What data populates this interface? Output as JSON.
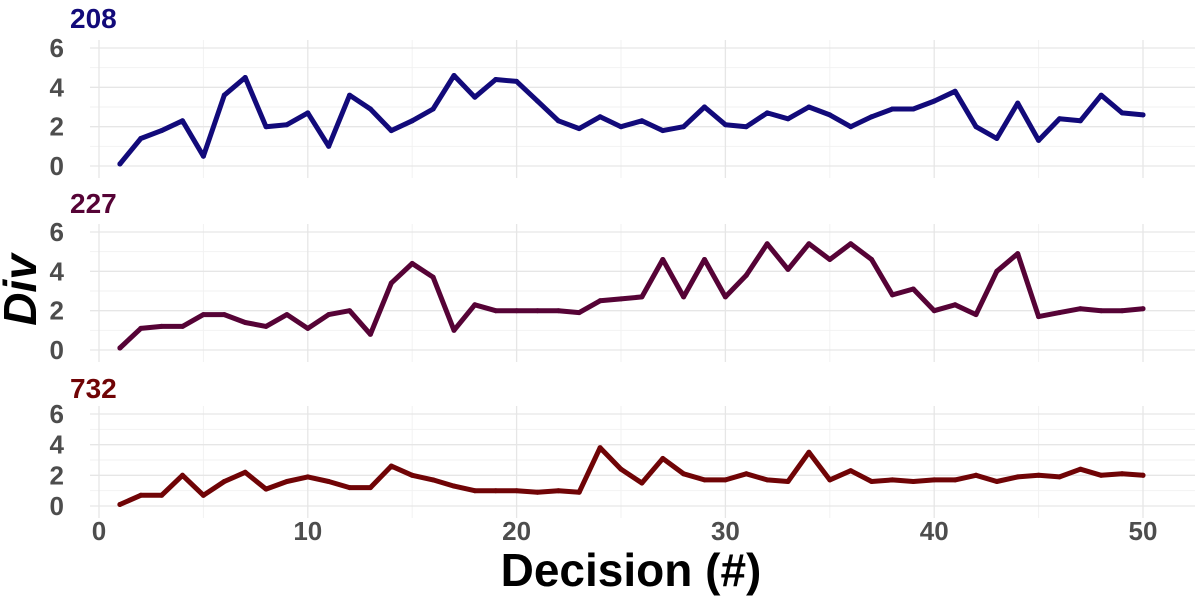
{
  "chart_data": {
    "type": "line",
    "xlabel": "Decision (#)",
    "ylabel": "Div",
    "xlim": [
      0,
      50
    ],
    "ylim": [
      0,
      6
    ],
    "xticks": [
      0,
      10,
      20,
      30,
      40,
      50
    ],
    "yticks": [
      0,
      2,
      4,
      6
    ],
    "grid": true,
    "legend": "none",
    "x": [
      1,
      2,
      3,
      4,
      5,
      6,
      7,
      8,
      9,
      10,
      11,
      12,
      13,
      14,
      15,
      16,
      17,
      18,
      19,
      20,
      21,
      22,
      23,
      24,
      25,
      26,
      27,
      28,
      29,
      30,
      31,
      32,
      33,
      34,
      35,
      36,
      37,
      38,
      39,
      40,
      41,
      42,
      43,
      44,
      45,
      46,
      47,
      48,
      49,
      50
    ],
    "series": [
      {
        "name": "208",
        "color": "#120a7a",
        "values": [
          0.1,
          1.4,
          1.8,
          2.3,
          0.5,
          3.6,
          4.5,
          2.0,
          2.1,
          2.7,
          1.0,
          3.6,
          2.9,
          1.8,
          2.3,
          2.9,
          4.6,
          3.5,
          4.4,
          4.3,
          3.3,
          2.3,
          1.9,
          2.5,
          2.0,
          2.3,
          1.8,
          2.0,
          3.0,
          2.1,
          2.0,
          2.7,
          2.4,
          3.0,
          2.6,
          2.0,
          2.5,
          2.9,
          2.9,
          3.3,
          3.8,
          2.0,
          1.4,
          3.2,
          1.3,
          2.4,
          2.3,
          3.6,
          2.7,
          2.6
        ]
      },
      {
        "name": "227",
        "color": "#560336",
        "values": [
          0.1,
          1.1,
          1.2,
          1.2,
          1.8,
          1.8,
          1.4,
          1.2,
          1.8,
          1.1,
          1.8,
          2.0,
          0.8,
          3.4,
          4.4,
          3.7,
          1.0,
          2.3,
          2.0,
          2.0,
          2.0,
          2.0,
          1.9,
          2.5,
          2.6,
          2.7,
          4.6,
          2.7,
          4.6,
          2.7,
          3.8,
          5.4,
          4.1,
          5.4,
          4.6,
          5.4,
          4.6,
          2.8,
          3.1,
          2.0,
          2.3,
          1.8,
          4.0,
          4.9,
          1.7,
          1.9,
          2.1,
          2.0,
          2.0,
          2.1
        ]
      },
      {
        "name": "732",
        "color": "#700406",
        "values": [
          0.1,
          0.7,
          0.7,
          2.0,
          0.7,
          1.6,
          2.2,
          1.1,
          1.6,
          1.9,
          1.6,
          1.2,
          1.2,
          2.6,
          2.0,
          1.7,
          1.3,
          1.0,
          1.0,
          1.0,
          0.9,
          1.0,
          0.9,
          3.8,
          2.4,
          1.5,
          3.1,
          2.1,
          1.7,
          1.7,
          2.1,
          1.7,
          1.6,
          3.5,
          1.7,
          2.3,
          1.6,
          1.7,
          1.6,
          1.7,
          1.7,
          2.0,
          1.6,
          1.9,
          2.0,
          1.9,
          2.4,
          2.0,
          2.1,
          2.0
        ]
      }
    ]
  }
}
